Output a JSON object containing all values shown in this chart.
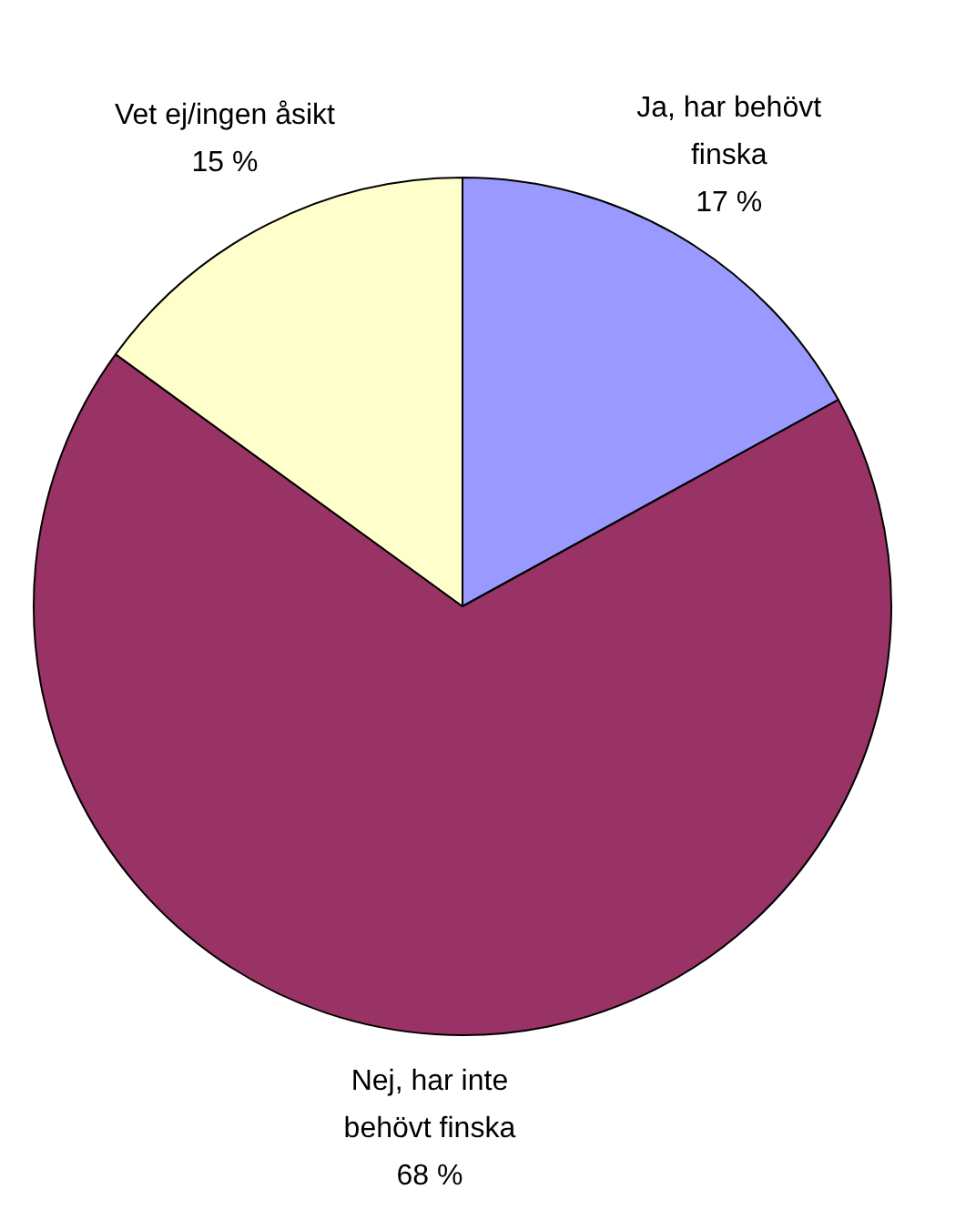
{
  "chart_data": {
    "type": "pie",
    "categories": [
      "Ja, har behövt finska",
      "Nej, har inte behövt finska",
      "Vet ej/ingen åsikt"
    ],
    "values": [
      17,
      68,
      15
    ],
    "colors": [
      "#9999ff",
      "#993366",
      "#ffffcc"
    ],
    "value_labels": [
      "17 %",
      "68 %",
      "15 %"
    ],
    "legend": false
  }
}
